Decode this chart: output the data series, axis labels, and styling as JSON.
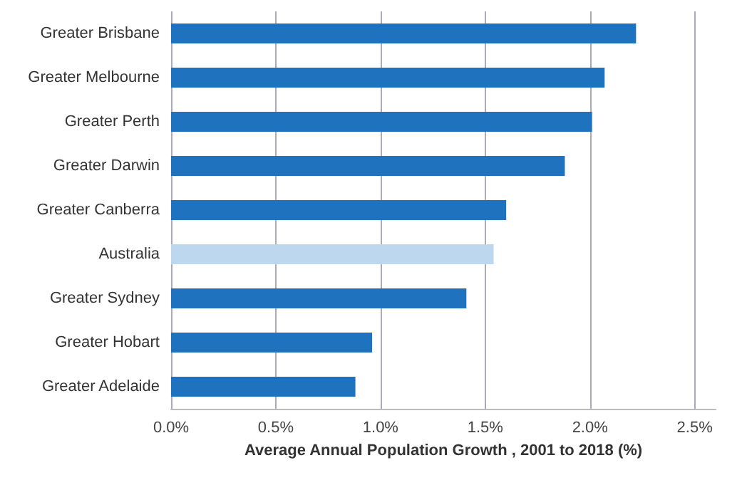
{
  "chart_data": {
    "type": "bar",
    "orientation": "horizontal",
    "xlabel": "Average Annual Population Growth , 2001 to 2018 (%)",
    "categories": [
      "Greater Brisbane",
      "Greater Melbourne",
      "Greater Perth",
      "Greater Darwin",
      "Greater Canberra",
      "Australia",
      "Greater Sydney",
      "Greater Hobart",
      "Greater Adelaide"
    ],
    "values": [
      2.22,
      2.07,
      2.01,
      1.88,
      1.6,
      1.54,
      1.41,
      0.96,
      0.88
    ],
    "colors": [
      "#1f73be",
      "#1f73be",
      "#1f73be",
      "#1f73be",
      "#1f73be",
      "#bdd7ee",
      "#1f73be",
      "#1f73be",
      "#1f73be"
    ],
    "xlim": [
      0,
      2.6
    ],
    "xticks": [
      {
        "value": 0,
        "label": "0.0%"
      },
      {
        "value": 0.5,
        "label": "0.5%"
      },
      {
        "value": 1,
        "label": "1.0%"
      },
      {
        "value": 1.5,
        "label": "1.5%"
      },
      {
        "value": 2,
        "label": "2.0%"
      },
      {
        "value": 2.5,
        "label": "2.5%"
      }
    ],
    "grid": "x"
  }
}
